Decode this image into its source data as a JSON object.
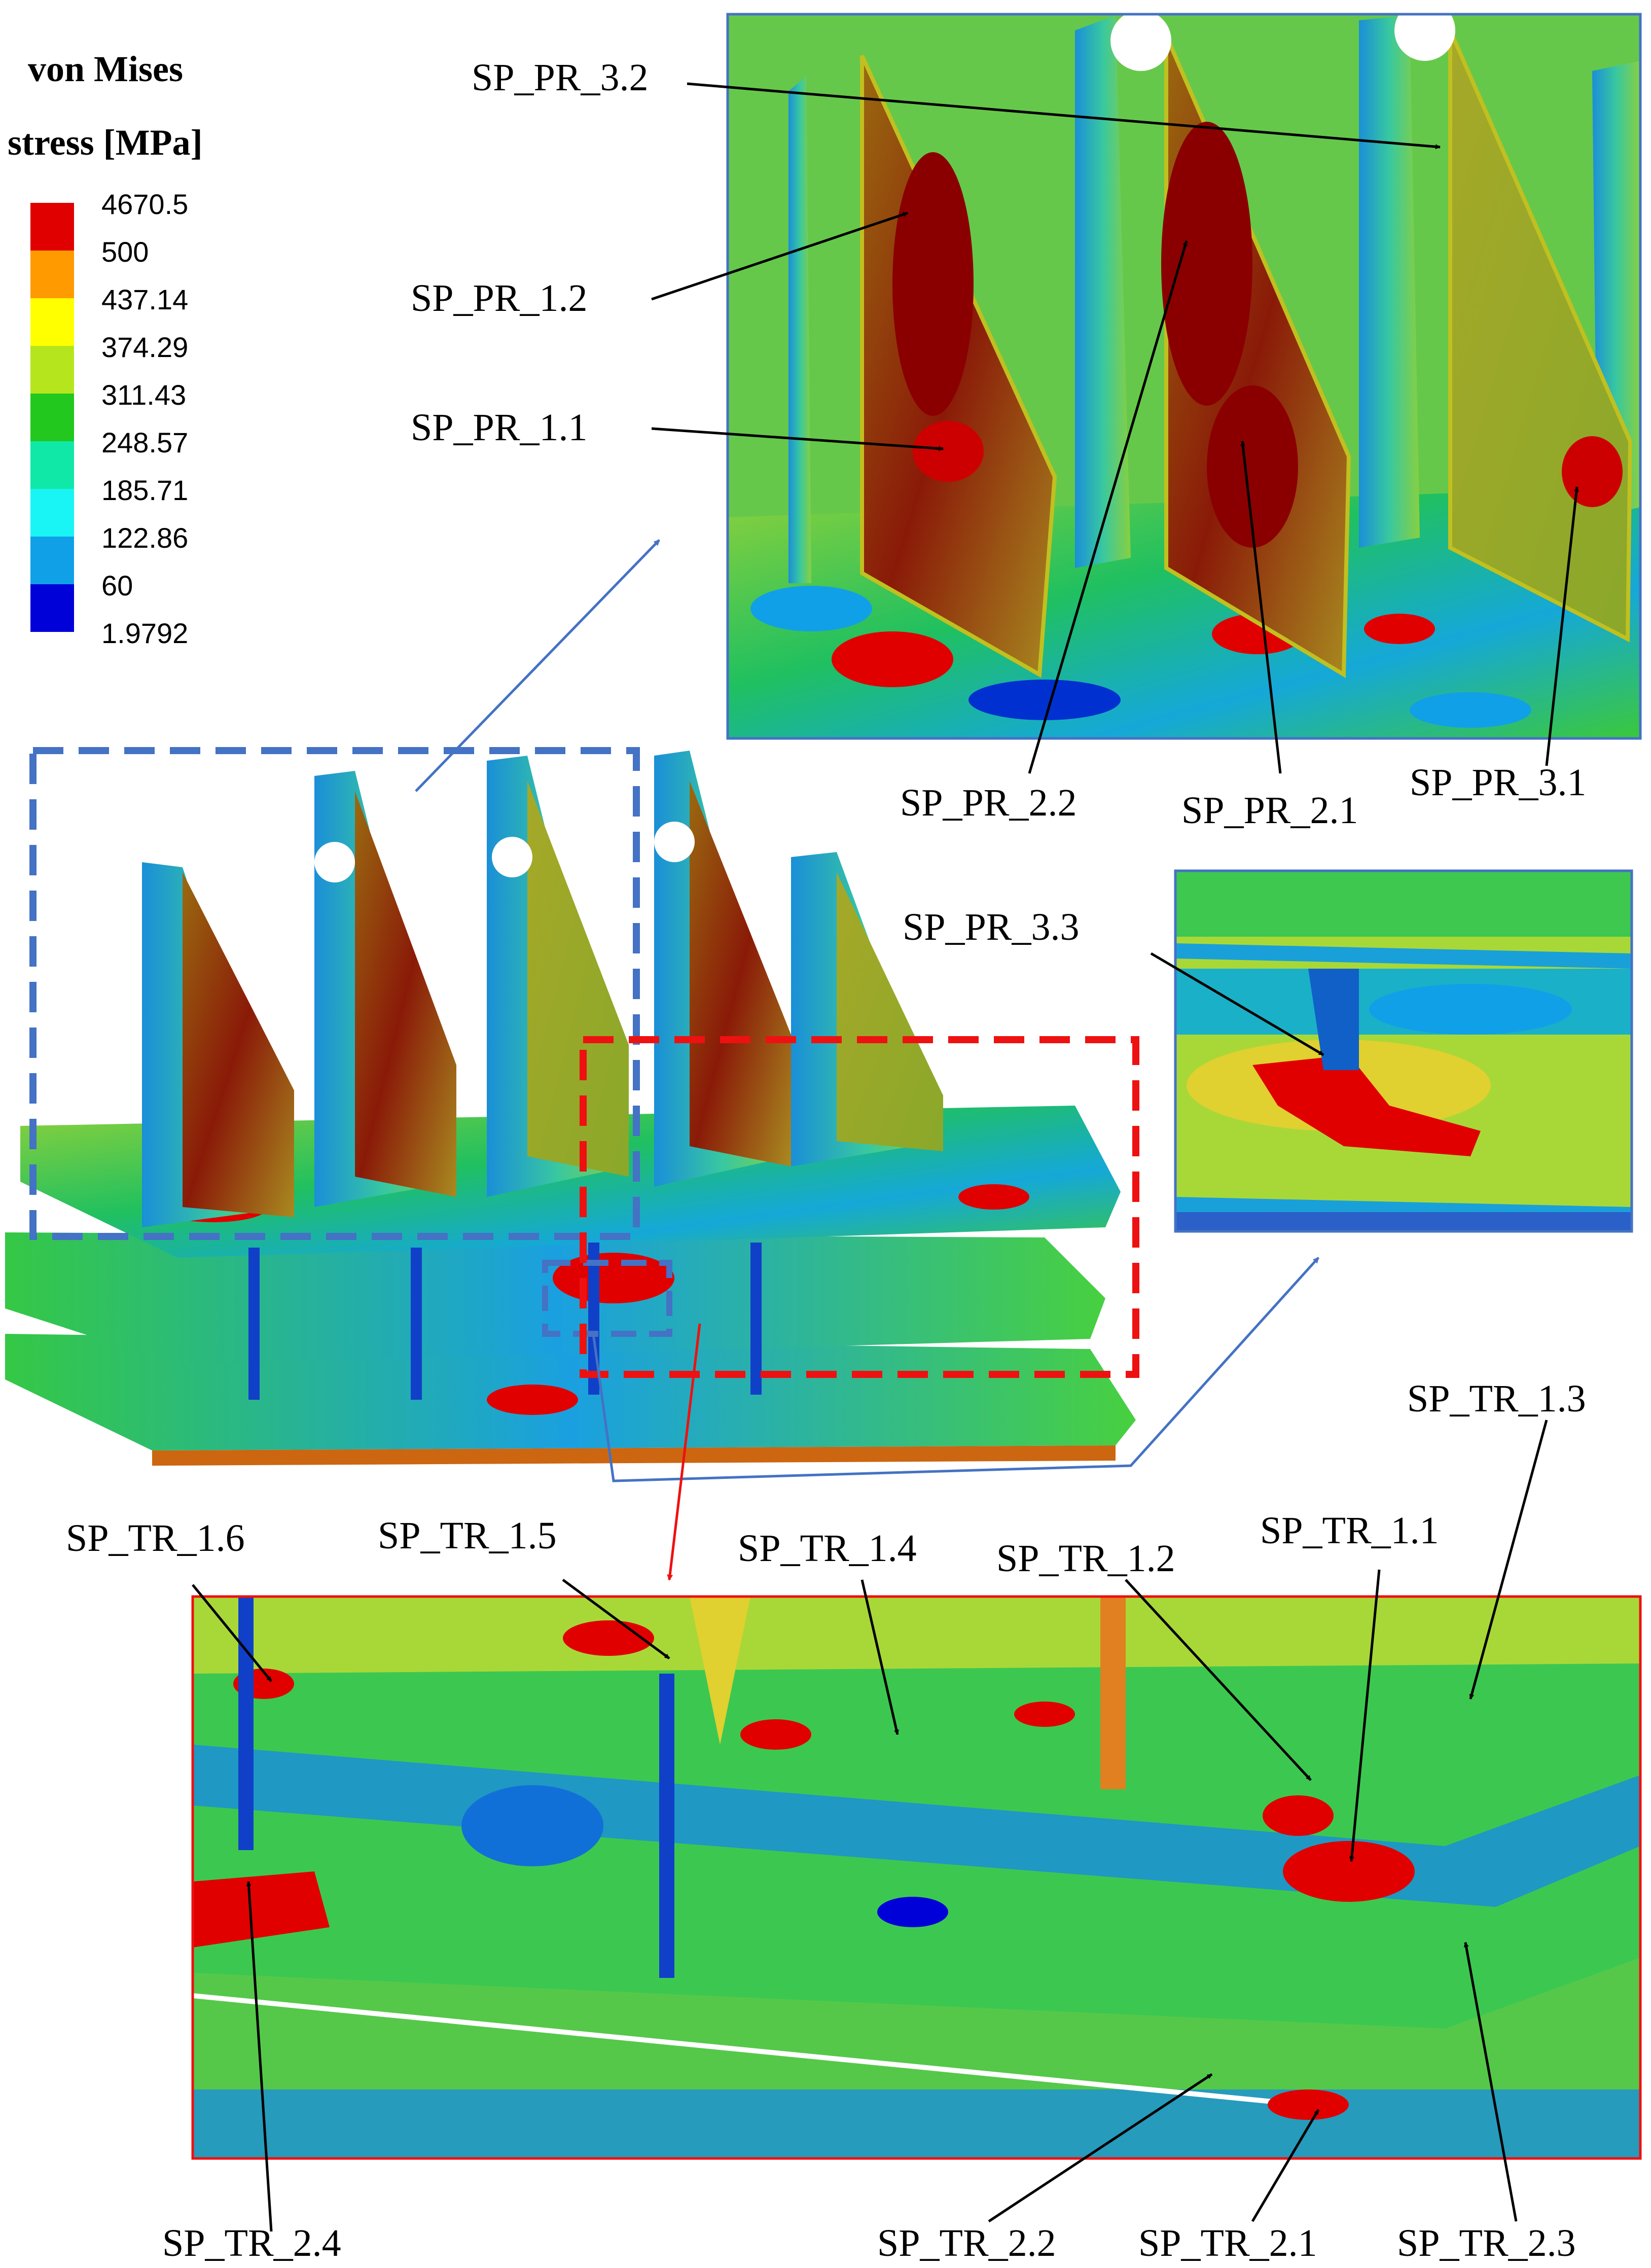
{
  "legend": {
    "title_line1": "von Mises",
    "title_line2": "stress [MPa]",
    "labels": [
      "4670.5",
      "500",
      "437.14",
      "374.29",
      "311.43",
      "248.57",
      "185.71",
      "122.86",
      "60",
      "1.9792"
    ],
    "colors": [
      "#e00000",
      "#ff9a00",
      "#ffff00",
      "#b5e61d",
      "#22c81e",
      "#10e8a8",
      "#19f4f4",
      "#10a0e8",
      "#0000d8"
    ]
  },
  "callouts": {
    "sp_pr_3_2": "SP_PR_3.2",
    "sp_pr_1_2": "SP_PR_1.2",
    "sp_pr_1_1": "SP_PR_1.1",
    "sp_pr_2_2": "SP_PR_2.2",
    "sp_pr_2_1": "SP_PR_2.1",
    "sp_pr_3_1": "SP_PR_3.1",
    "sp_pr_3_3": "SP_PR_3.3",
    "sp_tr_1_3": "SP_TR_1.3",
    "sp_tr_1_6": "SP_TR_1.6",
    "sp_tr_1_5": "SP_TR_1.5",
    "sp_tr_1_4": "SP_TR_1.4",
    "sp_tr_1_2": "SP_TR_1.2",
    "sp_tr_1_1": "SP_TR_1.1",
    "sp_tr_2_4": "SP_TR_2.4",
    "sp_tr_2_2": "SP_TR_2.2",
    "sp_tr_2_1": "SP_TR_2.1",
    "sp_tr_2_3": "SP_TR_2.3"
  },
  "colors": {
    "blue_frame": "#4472c4",
    "red_frame": "#ee1111",
    "arrow": "#000000"
  }
}
